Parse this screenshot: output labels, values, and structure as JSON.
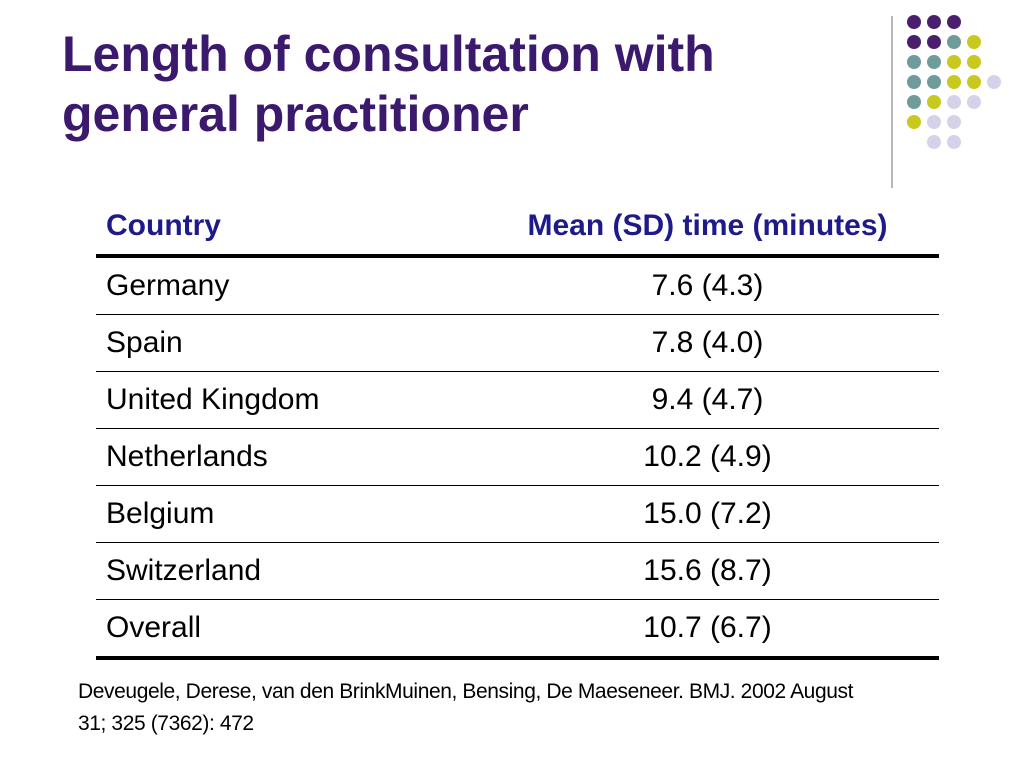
{
  "slide": {
    "title_lines": [
      "Length of consultation with",
      "general practitioner"
    ],
    "decoration": {
      "icon": "dot-grid",
      "colors": {
        "purple": "#4a1f6e",
        "teal": "#6f9b9b",
        "yellow": "#c8c81e",
        "lavender": "#d4d2e8"
      }
    }
  },
  "table": {
    "headers": {
      "country": "Country",
      "mean": "Mean (SD) time (minutes)"
    },
    "rows": [
      {
        "country": "Germany",
        "mean": "7.6 (4.3)"
      },
      {
        "country": "Spain",
        "mean": "7.8 (4.0)"
      },
      {
        "country": "United Kingdom",
        "mean": "9.4 (4.7)"
      },
      {
        "country": "Netherlands",
        "mean": "10.2 (4.9)"
      },
      {
        "country": "Belgium",
        "mean": "15.0 (7.2)"
      },
      {
        "country": "Switzerland",
        "mean": "15.6 (8.7)"
      },
      {
        "country": "Overall",
        "mean": "10.7 (6.7)"
      }
    ]
  },
  "citation": {
    "line1": "Deveugele, Derese, van den BrinkMuinen, Bensing, De Maeseneer. BMJ. 2002 August",
    "line2": "31; 325 (7362): 472"
  },
  "chart_data": {
    "type": "table",
    "columns": [
      "Country",
      "Mean (SD) time (minutes)"
    ],
    "rows": [
      [
        "Germany",
        "7.6 (4.3)"
      ],
      [
        "Spain",
        "7.8 (4.0)"
      ],
      [
        "United Kingdom",
        "9.4 (4.7)"
      ],
      [
        "Netherlands",
        "10.2 (4.9)"
      ],
      [
        "Belgium",
        "15.0 (7.2)"
      ],
      [
        "Switzerland",
        "15.6 (8.7)"
      ],
      [
        "Overall",
        "10.7 (6.7)"
      ]
    ],
    "categories": [
      "Germany",
      "Spain",
      "United Kingdom",
      "Netherlands",
      "Belgium",
      "Switzerland",
      "Overall"
    ],
    "series": [
      {
        "name": "Mean",
        "values": [
          7.6,
          7.8,
          9.4,
          10.2,
          15.0,
          15.6,
          10.7
        ]
      },
      {
        "name": "SD",
        "values": [
          4.3,
          4.0,
          4.7,
          4.9,
          7.2,
          8.7,
          6.7
        ]
      }
    ]
  }
}
